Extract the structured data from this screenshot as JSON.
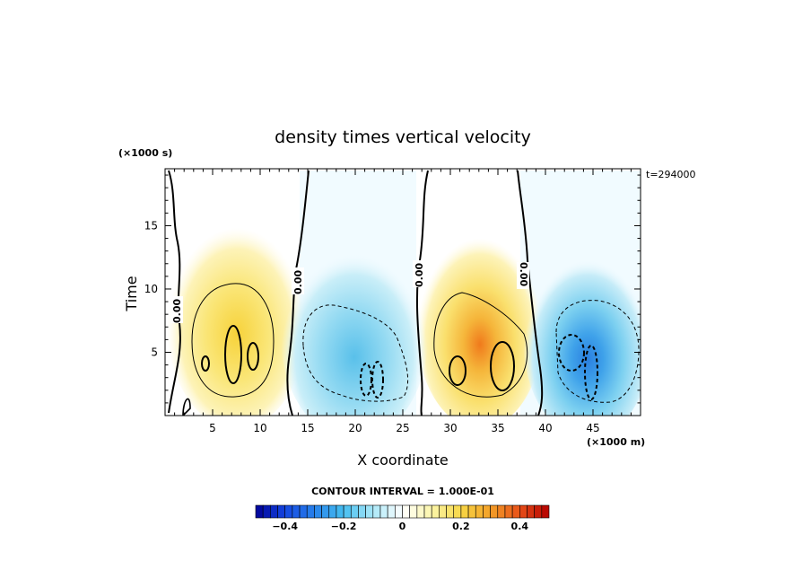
{
  "chart_data": {
    "type": "contour",
    "title": "density times vertical velocity",
    "xlabel": "X coordinate",
    "ylabel": "Time",
    "x_units": "(×1000 m)",
    "y_units": "(×1000 s)",
    "time_stamp": "t=294000",
    "xlim": [
      0,
      50
    ],
    "ylim": [
      0,
      19.5
    ],
    "x_ticks": [
      5,
      10,
      15,
      20,
      25,
      30,
      35,
      40,
      45
    ],
    "y_ticks": [
      5,
      10,
      15
    ],
    "contour_interval_text": "CONTOUR INTERVAL = 1.000E-01",
    "zero_contour_labels": [
      "0.00",
      "0.00",
      "0.00",
      "0.00"
    ],
    "colorbar": {
      "min": -0.5,
      "max": 0.5,
      "tick_values": [
        -0.4,
        -0.2,
        0,
        0.2,
        0.4
      ],
      "tick_labels": [
        "−0.4",
        "−0.2",
        "0",
        "0.2",
        "0.4"
      ]
    },
    "features": [
      {
        "x": 8,
        "y": 5,
        "value": 0.3,
        "sign": "positive"
      },
      {
        "x": 21,
        "y": 4,
        "value": -0.3,
        "sign": "negative"
      },
      {
        "x": 34,
        "y": 4,
        "value": 0.4,
        "sign": "positive"
      },
      {
        "x": 44,
        "y": 4,
        "value": -0.4,
        "sign": "negative"
      }
    ]
  }
}
